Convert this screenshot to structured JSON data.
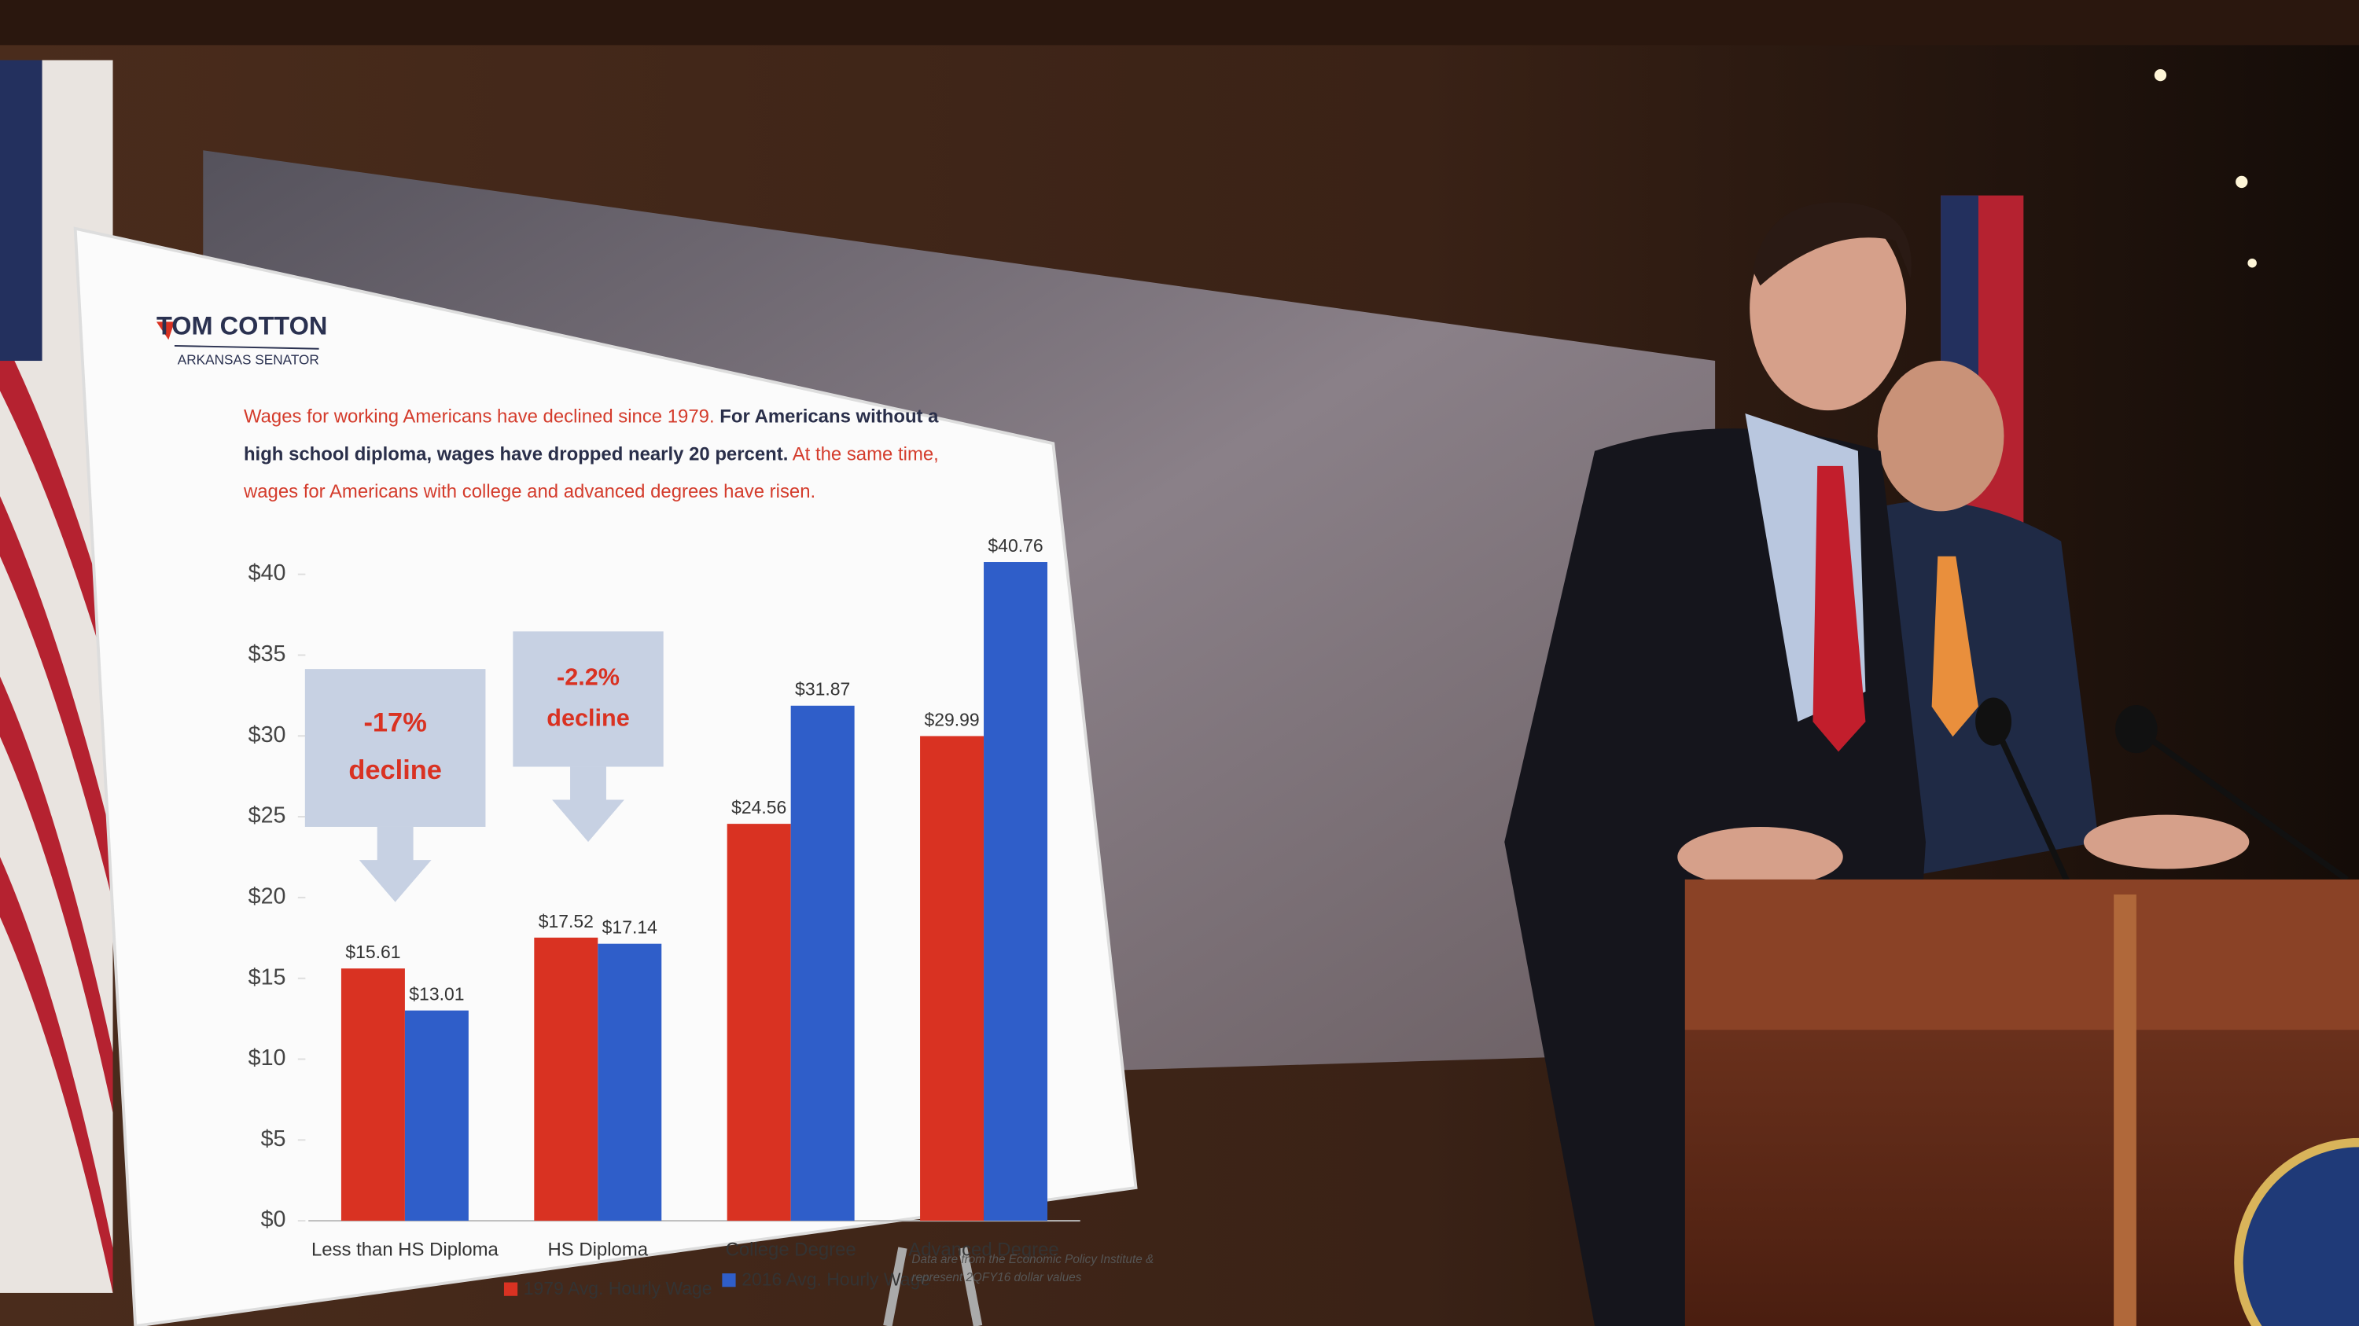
{
  "brand": {
    "name": "TOM COTTON",
    "role": "ARKANSAS SENATOR"
  },
  "chart_data": {
    "type": "bar",
    "subtitle": {
      "lead": "Wages for working Americans have declined since 1979.",
      "emphasis": "For Americans without a high school diploma, wages have dropped nearly 20 percent.",
      "tail": "At the same time, wages for Americans with college and advanced degrees have risen."
    },
    "categories": [
      "Less than HS Diploma",
      "HS Diploma",
      "College Degree",
      "Advanced Degree"
    ],
    "series": [
      {
        "name": "1979 Avg. Hourly Wage",
        "color": "#d93222",
        "values": [
          15.61,
          17.52,
          24.56,
          29.99
        ],
        "value_labels": [
          "$15.61",
          "$17.52",
          "$24.56",
          "$29.99"
        ]
      },
      {
        "name": "2016 Avg. Hourly Wage",
        "color": "#2f5ec9",
        "values": [
          13.01,
          17.14,
          31.87,
          40.76
        ],
        "value_labels": [
          "$13.01",
          "$17.14",
          "$31.87",
          "$40.76"
        ]
      }
    ],
    "ylim": [
      0,
      40
    ],
    "yticks": [
      {
        "value": 0,
        "label": "$0"
      },
      {
        "value": 5,
        "label": "$5"
      },
      {
        "value": 10,
        "label": "$10"
      },
      {
        "value": 15,
        "label": "$15"
      },
      {
        "value": 20,
        "label": "$20"
      },
      {
        "value": 25,
        "label": "$25"
      },
      {
        "value": 30,
        "label": "$30"
      },
      {
        "value": 35,
        "label": "$35"
      },
      {
        "value": 40,
        "label": "$40"
      }
    ],
    "grid": false,
    "annotations": [
      {
        "label": "-17%",
        "text": "decline"
      },
      {
        "label": "-2.2%",
        "text": "decline"
      }
    ],
    "note": [
      "Data are from the Economic Policy Institute &",
      "represent 2QFY16 dollar values"
    ]
  }
}
